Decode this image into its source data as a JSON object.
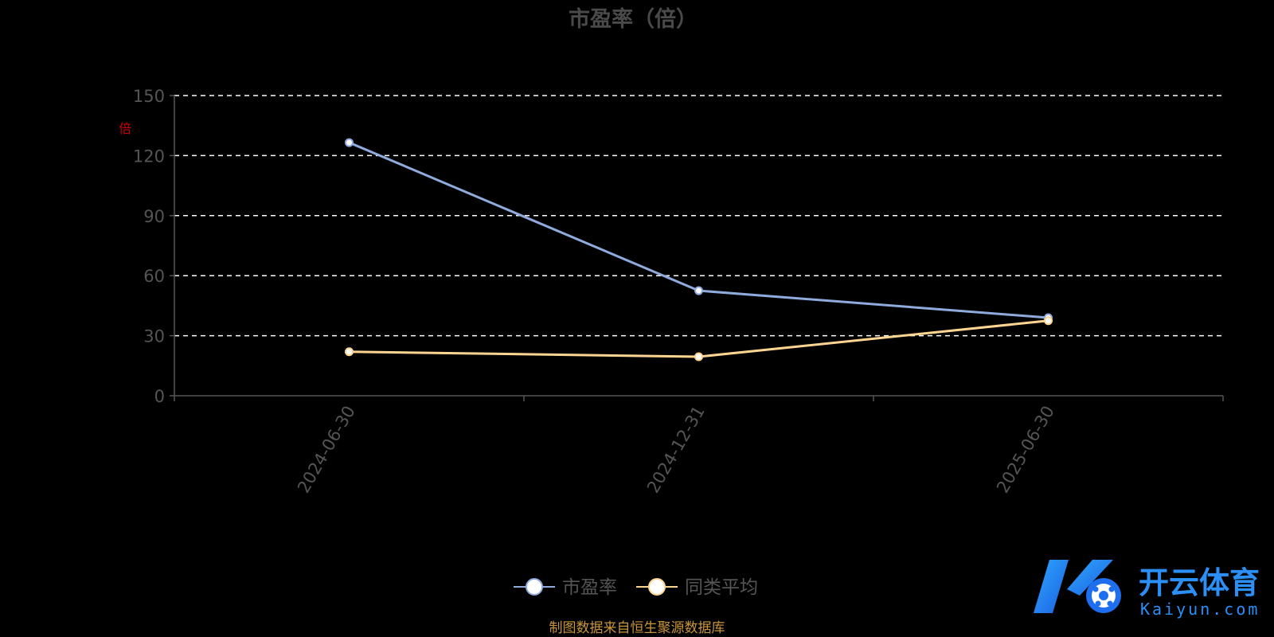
{
  "chart_data": {
    "type": "line",
    "title": "市盈率（倍）",
    "ylabel": "倍",
    "ylim": [
      0,
      150
    ],
    "yticks": [
      0,
      30,
      60,
      90,
      120,
      150
    ],
    "categories": [
      "2024-06-30",
      "2024-12-31",
      "2025-06-30"
    ],
    "grid": true,
    "legend_position": "bottom",
    "series": [
      {
        "name": "市盈率",
        "values": [
          126.5,
          52.5,
          39.0
        ],
        "color": "#8faadc"
      },
      {
        "name": "同类平均",
        "values": [
          22.0,
          19.5,
          37.5
        ],
        "color": "#ffd591"
      }
    ]
  },
  "footer": {
    "source": "制图数据来自恒生聚源数据库"
  },
  "logo": {
    "name": "开云体育",
    "domain": "Kaiyun.com"
  }
}
